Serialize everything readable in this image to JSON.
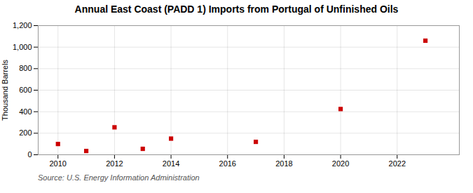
{
  "chart_data": {
    "type": "scatter",
    "title": "Annual East Coast (PADD 1) Imports from Portugal of Unfinished Oils",
    "ylabel": "Thousand Barrels",
    "source": "Source: U.S. Energy Information Administration",
    "x": [
      2010,
      2011,
      2012,
      2013,
      2014,
      2017,
      2020,
      2023
    ],
    "values": [
      100,
      35,
      255,
      55,
      150,
      120,
      425,
      1060
    ],
    "color": "#cc0000",
    "marker": "square",
    "xlim": [
      2009.3,
      2024.2
    ],
    "xticks": [
      2010,
      2012,
      2014,
      2016,
      2018,
      2020,
      2022
    ],
    "ylim": [
      0,
      1200
    ],
    "yticks": [
      {
        "value": 0,
        "label": "0"
      },
      {
        "value": 200,
        "label": "200"
      },
      {
        "value": 400,
        "label": "400"
      },
      {
        "value": 600,
        "label": "600"
      },
      {
        "value": 800,
        "label": "800"
      },
      {
        "value": 1000,
        "label": "1,000"
      },
      {
        "value": 1200,
        "label": "1,200"
      }
    ],
    "grid": true
  }
}
